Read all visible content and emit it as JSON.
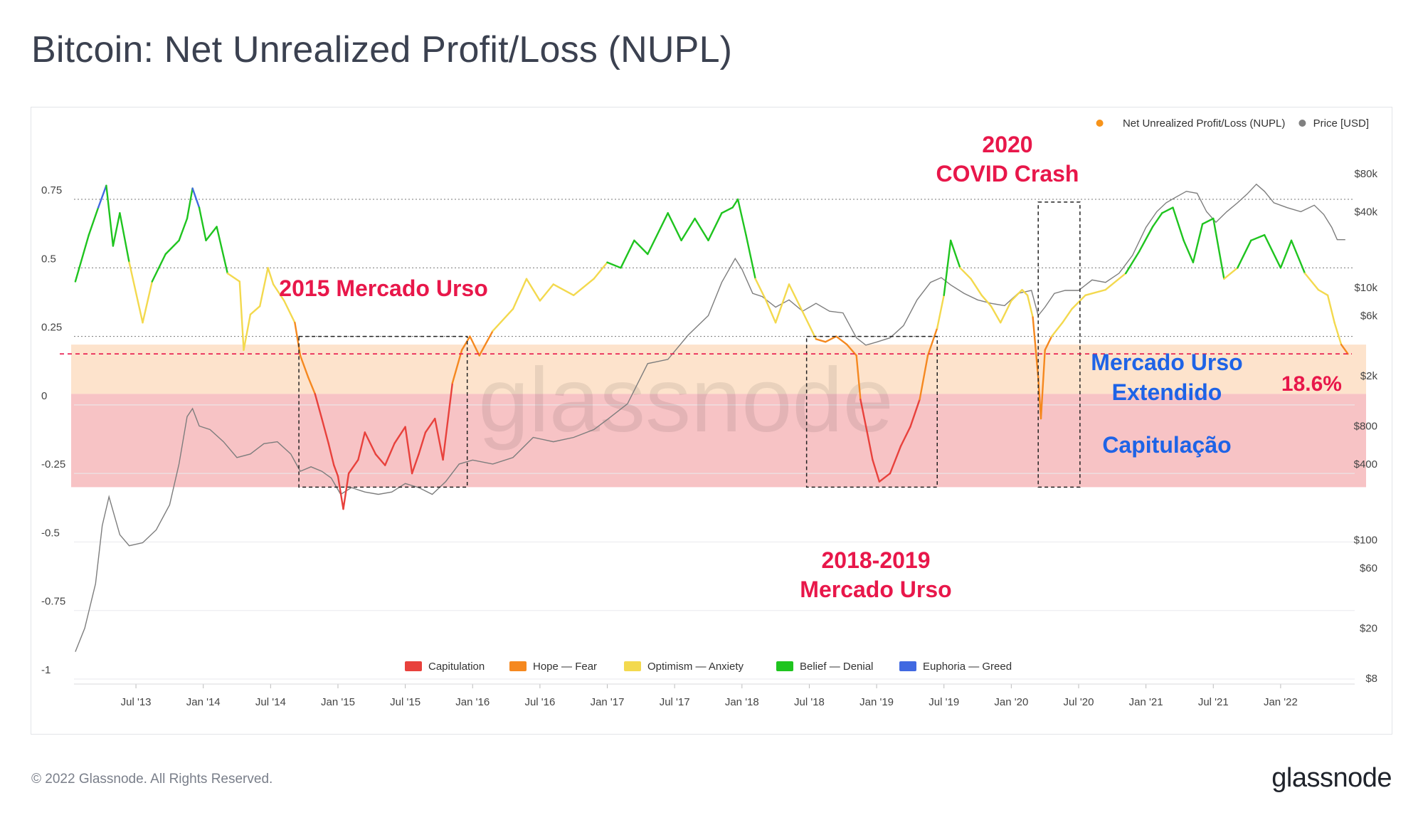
{
  "header": {
    "title": "Bitcoin: Net Unrealized Profit/Loss (NUPL)"
  },
  "footer": {
    "copyright": "© 2022 Glassnode. All Rights Reserved.",
    "logo": "glassnode"
  },
  "chart_data": {
    "type": "line",
    "watermark": "glassnode",
    "legend_top": [
      {
        "name": "Net Unrealized Profit/Loss (NUPL)",
        "color": "#f7931a"
      },
      {
        "name": "Price [USD]",
        "color": "#808080"
      }
    ],
    "legend_bottom": [
      {
        "name": "Capitulation",
        "color": "#e8413c"
      },
      {
        "name": "Hope — Fear",
        "color": "#f5881f"
      },
      {
        "name": "Optimism — Anxiety",
        "color": "#f3d94e"
      },
      {
        "name": "Belief — Denial",
        "color": "#1fc41f"
      },
      {
        "name": "Euphoria — Greed",
        "color": "#4169e1"
      }
    ],
    "x_axis": {
      "ticks": [
        "Jul '13",
        "Jan '14",
        "Jul '14",
        "Jan '15",
        "Jul '15",
        "Jan '16",
        "Jul '16",
        "Jan '17",
        "Jul '17",
        "Jan '18",
        "Jul '18",
        "Jan '19",
        "Jul '19",
        "Jan '20",
        "Jul '20",
        "Jan '21",
        "Jul '21",
        "Jan '22"
      ],
      "tick_values": [
        2013.5,
        2014.0,
        2014.5,
        2015.0,
        2015.5,
        2016.0,
        2016.5,
        2017.0,
        2017.5,
        2018.0,
        2018.5,
        2019.0,
        2019.5,
        2020.0,
        2020.5,
        2021.0,
        2021.5,
        2022.0
      ],
      "range": [
        2013.04,
        2022.55
      ]
    },
    "y_axis_left": {
      "ticks": [
        "0.75",
        "0.5",
        "0.25",
        "0",
        "-0.25",
        "-0.5",
        "-0.75",
        "-1"
      ],
      "tick_values": [
        0.75,
        0.5,
        0.25,
        0,
        -0.25,
        -0.5,
        -0.75,
        -1
      ],
      "range": [
        -1,
        0.95
      ]
    },
    "y_axis_right": {
      "scale": "log",
      "ticks": [
        "$80k",
        "$40k",
        "$10k",
        "$6k",
        "$2k",
        "$800",
        "$400",
        "$100",
        "$60",
        "$20",
        "$8"
      ],
      "tick_values": [
        80000,
        40000,
        10000,
        6000,
        2000,
        800,
        400,
        100,
        60,
        20,
        8
      ]
    },
    "bands": [
      {
        "label": "Mercado Urso Extendido",
        "from": 0.04,
        "to": 0.22,
        "color": "#fde3cc"
      },
      {
        "label": "Capitulação",
        "from": -0.3,
        "to": 0.04,
        "color": "#f7c3c5"
      }
    ],
    "reference_line": {
      "value": 0.186,
      "label": "18.6%",
      "color": "#e8174a"
    },
    "annotations": [
      {
        "text": "2015 Mercado Urso",
        "color": "#e8174a"
      },
      {
        "text": "2018-2019",
        "color": "#e8174a"
      },
      {
        "text": "Mercado Urso",
        "color": "#e8174a"
      },
      {
        "text": "2020",
        "color": "#e8174a"
      },
      {
        "text": "COVID Crash",
        "color": "#e8174a"
      },
      {
        "text": "Mercado Urso",
        "color": "#1e63e6"
      },
      {
        "text": "Extendido",
        "color": "#1e63e6"
      },
      {
        "text": "Capitulação",
        "color": "#1e63e6"
      }
    ],
    "boxes": [
      {
        "x0": 2014.71,
        "x1": 2015.96,
        "y0": -0.3,
        "y1": 0.25
      },
      {
        "x0": 2018.48,
        "x1": 2019.45,
        "y0": -0.3,
        "y1": 0.25
      },
      {
        "x0": 2020.2,
        "x1": 2020.51,
        "y0": -0.3,
        "y1": 0.74
      }
    ],
    "series": [
      {
        "name": "Net Unrealized Profit/Loss (NUPL)",
        "x": [
          2013.05,
          2013.15,
          2013.22,
          2013.28,
          2013.33,
          2013.38,
          2013.45,
          2013.55,
          2013.62,
          2013.72,
          2013.82,
          2013.88,
          2013.92,
          2013.97,
          2014.02,
          2014.1,
          2014.18,
          2014.27,
          2014.3,
          2014.35,
          2014.42,
          2014.48,
          2014.52,
          2014.6,
          2014.68,
          2014.72,
          2014.78,
          2014.83,
          2014.88,
          2014.93,
          2014.97,
          2015.0,
          2015.04,
          2015.08,
          2015.15,
          2015.2,
          2015.28,
          2015.35,
          2015.42,
          2015.5,
          2015.55,
          2015.6,
          2015.65,
          2015.72,
          2015.78,
          2015.85,
          2015.92,
          2015.98,
          2016.05,
          2016.15,
          2016.3,
          2016.4,
          2016.5,
          2016.6,
          2016.75,
          2016.9,
          2017.0,
          2017.1,
          2017.2,
          2017.3,
          2017.45,
          2017.55,
          2017.65,
          2017.75,
          2017.85,
          2017.93,
          2017.97,
          2018.03,
          2018.1,
          2018.18,
          2018.25,
          2018.35,
          2018.45,
          2018.55,
          2018.62,
          2018.7,
          2018.78,
          2018.85,
          2018.88,
          2018.93,
          2018.97,
          2019.02,
          2019.1,
          2019.18,
          2019.25,
          2019.32,
          2019.38,
          2019.45,
          2019.5,
          2019.55,
          2019.62,
          2019.7,
          2019.78,
          2019.85,
          2019.92,
          2020.0,
          2020.08,
          2020.12,
          2020.16,
          2020.2,
          2020.22,
          2020.25,
          2020.3,
          2020.38,
          2020.45,
          2020.55,
          2020.7,
          2020.85,
          2020.95,
          2021.05,
          2021.12,
          2021.2,
          2021.28,
          2021.35,
          2021.42,
          2021.5,
          2021.58,
          2021.68,
          2021.78,
          2021.88,
          2022.0,
          2022.08,
          2022.18,
          2022.28,
          2022.35,
          2022.4,
          2022.45,
          2022.5
        ],
        "y": [
          0.45,
          0.62,
          0.72,
          0.8,
          0.58,
          0.7,
          0.52,
          0.3,
          0.45,
          0.55,
          0.6,
          0.68,
          0.79,
          0.72,
          0.6,
          0.65,
          0.48,
          0.45,
          0.2,
          0.33,
          0.36,
          0.5,
          0.44,
          0.38,
          0.3,
          0.18,
          0.1,
          0.04,
          -0.05,
          -0.14,
          -0.22,
          -0.26,
          -0.38,
          -0.25,
          -0.2,
          -0.1,
          -0.18,
          -0.22,
          -0.14,
          -0.08,
          -0.25,
          -0.18,
          -0.1,
          -0.05,
          -0.2,
          0.08,
          0.2,
          0.25,
          0.18,
          0.27,
          0.35,
          0.46,
          0.38,
          0.44,
          0.4,
          0.46,
          0.52,
          0.5,
          0.6,
          0.55,
          0.7,
          0.6,
          0.68,
          0.6,
          0.7,
          0.72,
          0.75,
          0.62,
          0.46,
          0.38,
          0.3,
          0.44,
          0.34,
          0.24,
          0.23,
          0.25,
          0.22,
          0.18,
          0.02,
          -0.1,
          -0.2,
          -0.28,
          -0.25,
          -0.15,
          -0.08,
          0.02,
          0.18,
          0.28,
          0.4,
          0.6,
          0.5,
          0.46,
          0.4,
          0.36,
          0.3,
          0.38,
          0.42,
          0.4,
          0.32,
          0.1,
          -0.05,
          0.2,
          0.25,
          0.3,
          0.35,
          0.4,
          0.42,
          0.48,
          0.56,
          0.65,
          0.7,
          0.72,
          0.6,
          0.52,
          0.66,
          0.68,
          0.46,
          0.5,
          0.6,
          0.62,
          0.5,
          0.6,
          0.48,
          0.42,
          0.4,
          0.3,
          0.22,
          0.186
        ]
      },
      {
        "name": "Price [USD]",
        "x": [
          2013.05,
          2013.12,
          2013.2,
          2013.25,
          2013.3,
          2013.38,
          2013.45,
          2013.55,
          2013.65,
          2013.75,
          2013.82,
          2013.88,
          2013.92,
          2013.97,
          2014.05,
          2014.15,
          2014.25,
          2014.35,
          2014.45,
          2014.55,
          2014.65,
          2014.72,
          2014.8,
          2014.88,
          2014.95,
          2015.02,
          2015.1,
          2015.2,
          2015.3,
          2015.4,
          2015.5,
          2015.6,
          2015.7,
          2015.8,
          2015.9,
          2016.0,
          2016.15,
          2016.3,
          2016.45,
          2016.6,
          2016.75,
          2016.9,
          2017.0,
          2017.15,
          2017.3,
          2017.45,
          2017.6,
          2017.75,
          2017.85,
          2017.95,
          2018.0,
          2018.08,
          2018.15,
          2018.25,
          2018.35,
          2018.45,
          2018.55,
          2018.65,
          2018.75,
          2018.85,
          2018.92,
          2019.0,
          2019.1,
          2019.2,
          2019.3,
          2019.4,
          2019.48,
          2019.55,
          2019.65,
          2019.75,
          2019.85,
          2019.95,
          2020.05,
          2020.15,
          2020.2,
          2020.25,
          2020.32,
          2020.4,
          2020.5,
          2020.6,
          2020.7,
          2020.8,
          2020.9,
          2021.0,
          2021.08,
          2021.15,
          2021.22,
          2021.3,
          2021.38,
          2021.45,
          2021.52,
          2021.6,
          2021.68,
          2021.75,
          2021.82,
          2021.88,
          2021.95,
          2022.05,
          2022.15,
          2022.25,
          2022.32,
          2022.38,
          2022.42,
          2022.48
        ],
        "y": [
          13,
          20,
          45,
          130,
          220,
          110,
          90,
          95,
          120,
          190,
          400,
          950,
          1100,
          800,
          750,
          600,
          450,
          480,
          580,
          600,
          480,
          350,
          380,
          350,
          310,
          230,
          260,
          240,
          230,
          240,
          280,
          260,
          230,
          290,
          400,
          430,
          400,
          450,
          650,
          600,
          650,
          750,
          900,
          1200,
          2500,
          2700,
          4200,
          6000,
          11000,
          17000,
          14000,
          9000,
          8500,
          7000,
          8000,
          6500,
          7500,
          6500,
          6300,
          4000,
          3500,
          3700,
          4000,
          5000,
          8000,
          11000,
          12000,
          10500,
          9000,
          8000,
          7500,
          7200,
          9000,
          9500,
          6000,
          7000,
          9000,
          9500,
          9500,
          11500,
          11000,
          13000,
          18000,
          30000,
          40000,
          47000,
          52000,
          58000,
          56000,
          40000,
          33000,
          40000,
          47000,
          55000,
          66000,
          58000,
          47000,
          43000,
          40000,
          45000,
          38000,
          30000,
          24000,
          24000
        ]
      }
    ]
  }
}
